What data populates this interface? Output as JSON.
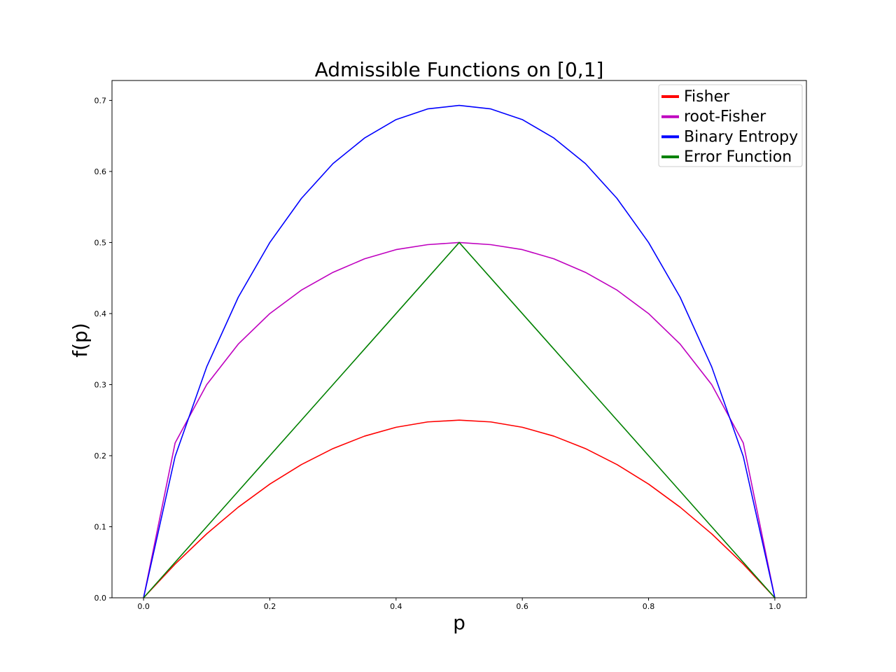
{
  "chart_data": {
    "type": "line",
    "title": "Admissible Functions on [0,1]",
    "xlabel": "p",
    "ylabel": "f(p)",
    "xlim": [
      -0.05,
      1.05
    ],
    "ylim": [
      0.0,
      0.728
    ],
    "xticks": [
      0.0,
      0.2,
      0.4,
      0.6,
      0.8,
      1.0
    ],
    "xtick_labels": [
      "0.0",
      "0.2",
      "0.4",
      "0.6",
      "0.8",
      "1.0"
    ],
    "yticks": [
      0.0,
      0.1,
      0.2,
      0.3,
      0.4,
      0.5,
      0.6,
      0.7
    ],
    "ytick_labels": [
      "0.0",
      "0.1",
      "0.2",
      "0.3",
      "0.4",
      "0.5",
      "0.6",
      "0.7"
    ],
    "grid": false,
    "legend_position": "top-right",
    "x": [
      0.0,
      0.05,
      0.1,
      0.15,
      0.2,
      0.25,
      0.3,
      0.35,
      0.4,
      0.45,
      0.5,
      0.55,
      0.6,
      0.65,
      0.7,
      0.75,
      0.8,
      0.85,
      0.9,
      0.95,
      1.0
    ],
    "series": [
      {
        "name": "Fisher",
        "color": "#ff0000",
        "values": [
          0.0,
          0.0475,
          0.09,
          0.1275,
          0.16,
          0.1875,
          0.21,
          0.2275,
          0.24,
          0.2475,
          0.25,
          0.2475,
          0.24,
          0.2275,
          0.21,
          0.1875,
          0.16,
          0.1275,
          0.09,
          0.0475,
          0.0
        ]
      },
      {
        "name": "root-Fisher",
        "color": "#bf00bf",
        "values": [
          0.0,
          0.218,
          0.3,
          0.357,
          0.4,
          0.433,
          0.458,
          0.477,
          0.49,
          0.497,
          0.5,
          0.497,
          0.49,
          0.477,
          0.458,
          0.433,
          0.4,
          0.357,
          0.3,
          0.218,
          0.0
        ]
      },
      {
        "name": "Binary Entropy",
        "color": "#0000ff",
        "values": [
          0.0,
          0.199,
          0.325,
          0.423,
          0.5,
          0.562,
          0.611,
          0.647,
          0.673,
          0.688,
          0.693,
          0.688,
          0.673,
          0.647,
          0.611,
          0.562,
          0.5,
          0.423,
          0.325,
          0.199,
          0.0
        ]
      },
      {
        "name": "Error Function",
        "color": "#008000",
        "values": [
          0.0,
          0.05,
          0.1,
          0.15,
          0.2,
          0.25,
          0.3,
          0.35,
          0.4,
          0.45,
          0.5,
          0.45,
          0.4,
          0.35,
          0.3,
          0.25,
          0.2,
          0.15,
          0.1,
          0.05,
          0.0
        ]
      }
    ]
  }
}
